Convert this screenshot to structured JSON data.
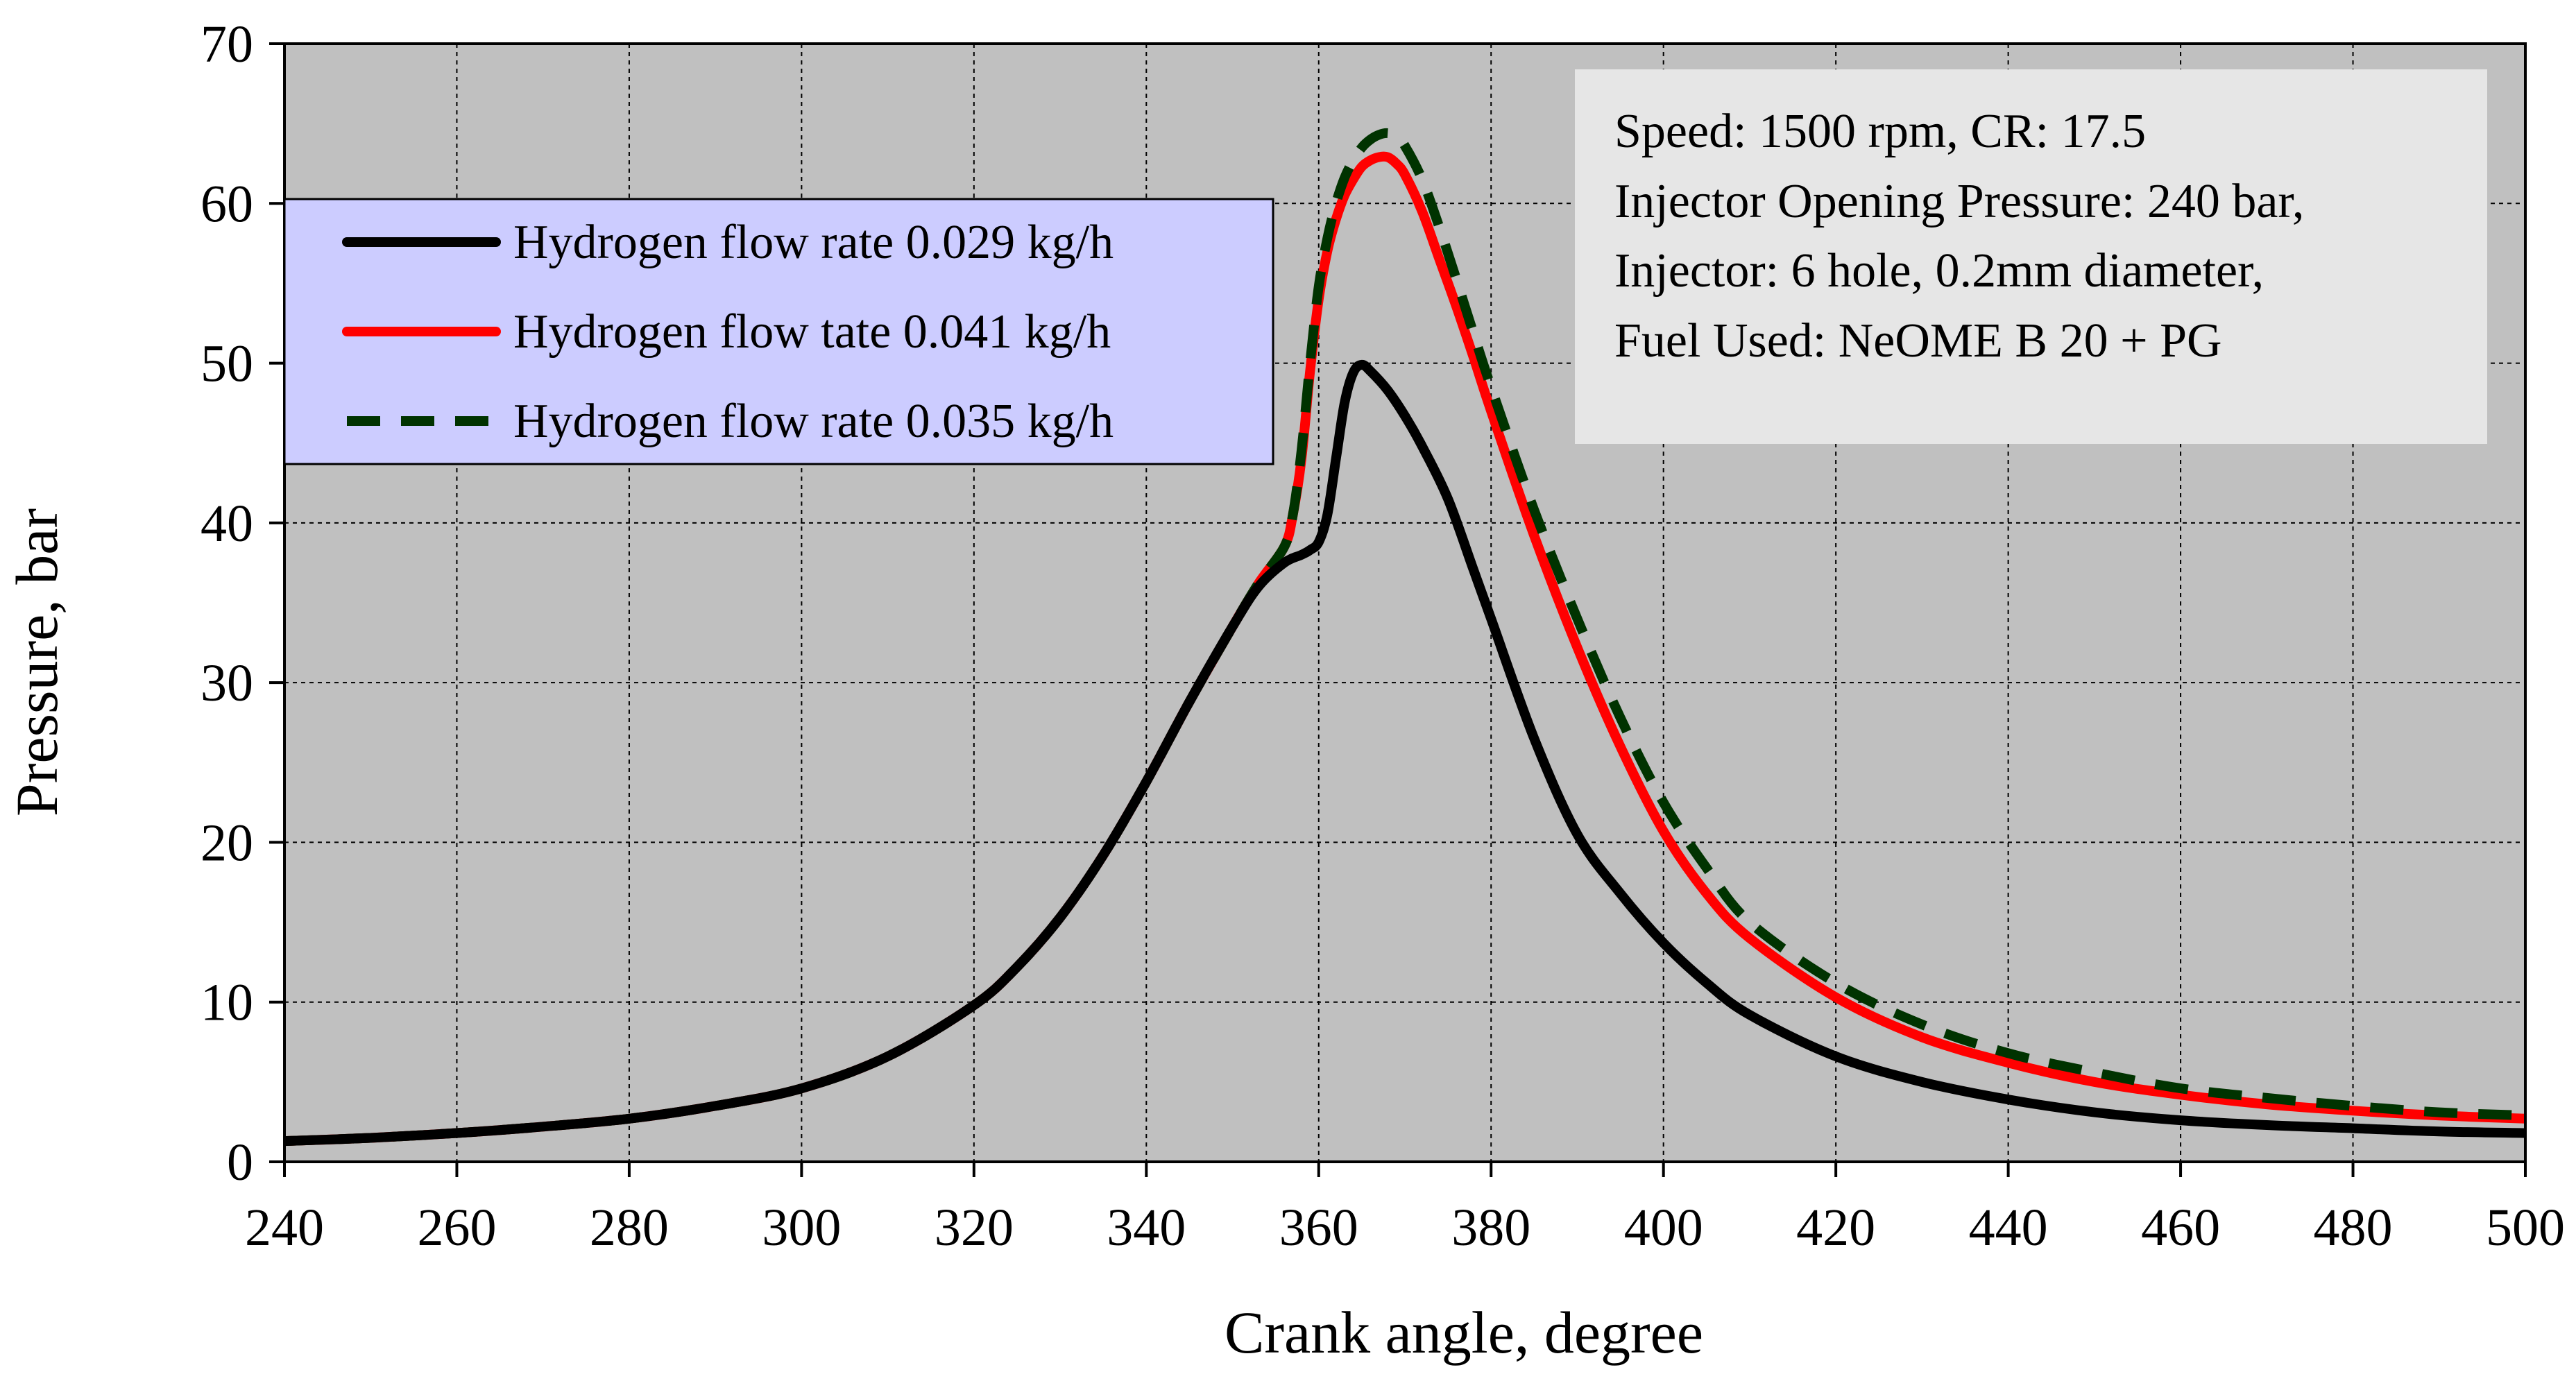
{
  "chart_data": {
    "type": "line",
    "xlabel": "Crank angle, degree",
    "ylabel": "Pressure,  bar",
    "xlim": [
      240,
      500
    ],
    "ylim": [
      0,
      70
    ],
    "xticks": [
      240,
      260,
      280,
      300,
      320,
      340,
      360,
      380,
      400,
      420,
      440,
      460,
      480,
      500
    ],
    "yticks": [
      0,
      10,
      20,
      30,
      40,
      50,
      60,
      70
    ],
    "grid": true,
    "colors": {
      "plot_background": "#c0c0c0",
      "legend_background": "#ccccff",
      "info_background": "#e6e6e6"
    },
    "series": [
      {
        "name": "Hydrogen flow rate 0.029 kg/h",
        "color": "#000000",
        "style": "solid",
        "x": [
          240,
          250,
          260,
          270,
          280,
          290,
          300,
          310,
          320,
          325,
          330,
          335,
          340,
          345,
          350,
          353,
          356,
          358,
          359,
          360,
          361,
          362,
          363,
          364,
          365,
          366,
          368,
          370,
          372,
          375,
          378,
          380,
          385,
          390,
          395,
          400,
          405,
          410,
          420,
          430,
          440,
          450,
          460,
          470,
          480,
          490,
          500
        ],
        "y": [
          1.3,
          1.5,
          1.8,
          2.2,
          2.7,
          3.5,
          4.6,
          6.6,
          9.8,
          12.2,
          15.3,
          19.2,
          23.8,
          28.8,
          33.5,
          36.0,
          37.5,
          38.0,
          38.3,
          38.8,
          40.5,
          44.0,
          47.5,
          49.4,
          49.9,
          49.5,
          48.3,
          46.7,
          44.8,
          41.5,
          37.0,
          34.0,
          26.5,
          20.5,
          16.8,
          13.7,
          11.2,
          9.2,
          6.6,
          5.0,
          3.9,
          3.1,
          2.6,
          2.3,
          2.1,
          1.9,
          1.8
        ]
      },
      {
        "name": "Hydrogen flow tate 0.041 kg/h",
        "color": "#ff0000",
        "style": "solid",
        "x": [
          240,
          250,
          260,
          270,
          280,
          290,
          300,
          310,
          320,
          325,
          330,
          335,
          340,
          345,
          350,
          353,
          356,
          357,
          358,
          359,
          360,
          361,
          362,
          363,
          364,
          365,
          366,
          367,
          368,
          369,
          370,
          372,
          374,
          376,
          378,
          380,
          385,
          390,
          395,
          400,
          405,
          410,
          420,
          430,
          440,
          450,
          460,
          470,
          480,
          490,
          500
        ],
        "y": [
          1.3,
          1.5,
          1.8,
          2.2,
          2.7,
          3.5,
          4.6,
          6.6,
          9.8,
          12.2,
          15.3,
          19.2,
          23.8,
          28.8,
          33.5,
          36.2,
          38.5,
          40.5,
          44.0,
          49.5,
          54.0,
          57.0,
          59.0,
          60.5,
          61.5,
          62.3,
          62.7,
          62.9,
          62.9,
          62.5,
          61.8,
          59.5,
          56.5,
          53.5,
          50.3,
          47.0,
          39.2,
          32.2,
          26.0,
          20.7,
          16.8,
          14.0,
          10.3,
          7.8,
          6.2,
          5.0,
          4.2,
          3.6,
          3.2,
          2.9,
          2.7
        ]
      },
      {
        "name": "Hydrogen flow rate 0.035 kg/h",
        "color": "#003300",
        "style": "dashed",
        "x": [
          240,
          250,
          260,
          270,
          280,
          290,
          300,
          310,
          320,
          325,
          330,
          335,
          340,
          345,
          350,
          353,
          356,
          357,
          358,
          359,
          360,
          361,
          362,
          363,
          364,
          365,
          366,
          367,
          368,
          369,
          370,
          372,
          374,
          376,
          378,
          380,
          385,
          390,
          395,
          400,
          405,
          410,
          420,
          430,
          440,
          450,
          460,
          470,
          480,
          490,
          500
        ],
        "y": [
          1.3,
          1.5,
          1.8,
          2.2,
          2.7,
          3.5,
          4.6,
          6.6,
          9.8,
          12.2,
          15.3,
          19.2,
          23.8,
          28.8,
          33.5,
          36.2,
          38.5,
          40.5,
          44.5,
          50.0,
          54.8,
          57.8,
          60.0,
          61.6,
          62.7,
          63.5,
          64.0,
          64.3,
          64.4,
          64.2,
          63.6,
          61.5,
          58.5,
          55.2,
          51.8,
          48.5,
          40.8,
          34.0,
          27.8,
          22.5,
          18.4,
          15.0,
          11.2,
          8.6,
          6.8,
          5.6,
          4.6,
          4.0,
          3.5,
          3.1,
          2.9
        ]
      }
    ],
    "legend": {
      "placement": "top-left",
      "entries": [
        "Hydrogen flow rate 0.029 kg/h",
        "Hydrogen flow tate 0.041 kg/h",
        "Hydrogen flow rate 0.035 kg/h"
      ]
    },
    "annotations": [
      "Speed: 1500 rpm, CR: 17.5",
      "Injector Opening Pressure: 240 bar,",
      "Injector: 6 hole, 0.2mm diameter,",
      "Fuel Used: NeOME B 20 + PG"
    ]
  }
}
